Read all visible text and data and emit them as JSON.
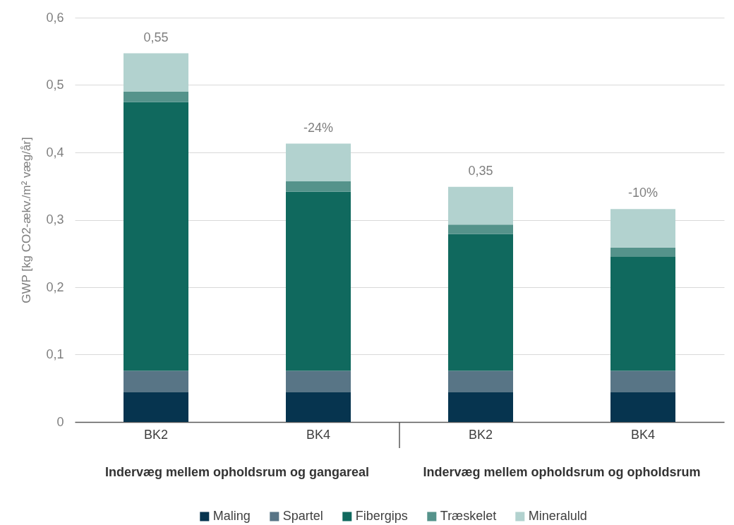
{
  "chart_data": {
    "type": "bar",
    "stacked": true,
    "categories": [
      "BK2",
      "BK4",
      "BK2",
      "BK4"
    ],
    "series": [
      {
        "name": "Maling",
        "color": "#06344f",
        "values": [
          0.044,
          0.044,
          0.044,
          0.044
        ]
      },
      {
        "name": "Spartel",
        "color": "#587586",
        "values": [
          0.032,
          0.032,
          0.032,
          0.032
        ]
      },
      {
        "name": "Fibergips",
        "color": "#10695e",
        "values": [
          0.399,
          0.266,
          0.203,
          0.169
        ]
      },
      {
        "name": "Træskelet",
        "color": "#55938b",
        "values": [
          0.015,
          0.015,
          0.014,
          0.014
        ]
      },
      {
        "name": "Mineraluld",
        "color": "#b2d2cf",
        "values": [
          0.057,
          0.056,
          0.056,
          0.057
        ]
      }
    ],
    "ylim": [
      0,
      0.6
    ],
    "yticks": [
      0,
      {
        "value": 0.1,
        "label": "0,1"
      },
      {
        "value": 0.2,
        "label": "0,2"
      },
      {
        "value": 0.3,
        "label": "0,3"
      },
      {
        "value": 0.4,
        "label": "0,4"
      },
      {
        "value": 0.5,
        "label": "0,5"
      },
      {
        "value": 0.6,
        "label": "0,6"
      }
    ],
    "ylabel": "GWP [kg CO2-ækv./m² væg/år]",
    "totals": [
      "0,55",
      null,
      "0,35",
      null
    ],
    "annotations": [
      {
        "text": "-24%",
        "y": 0.413
      },
      {
        "text": "-10%",
        "y": 0.316
      },
      "Indervæg mellem opholdsrum og gangareal",
      "Indervæg mellem opholdsrum og opholdsrum"
    ],
    "grid": "y",
    "legend": "bottom"
  }
}
